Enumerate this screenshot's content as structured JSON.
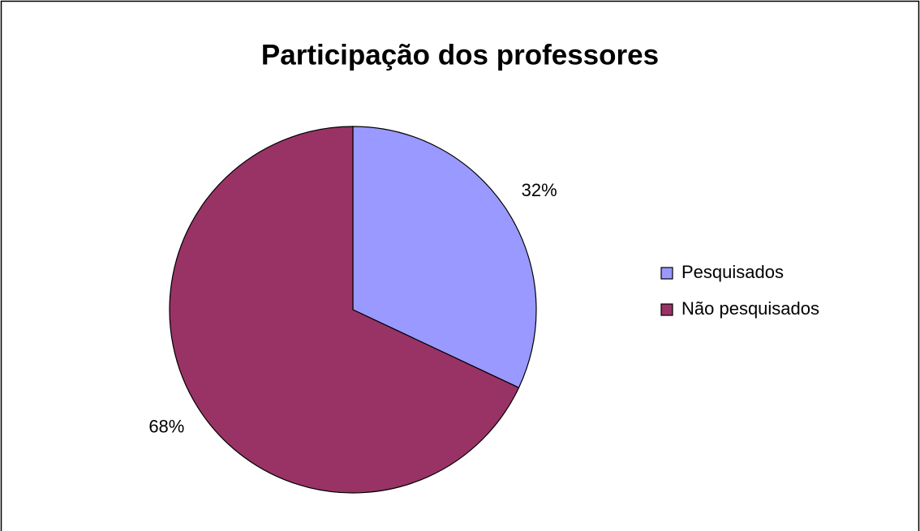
{
  "chart_data": {
    "type": "pie",
    "title": "Participação dos professores",
    "categories": [
      "Pesquisados",
      "Não pesquisados"
    ],
    "values": [
      32,
      68
    ],
    "value_labels": [
      "32%",
      "68%"
    ],
    "colors": [
      "#9999ff",
      "#993366"
    ],
    "legend": "right"
  }
}
